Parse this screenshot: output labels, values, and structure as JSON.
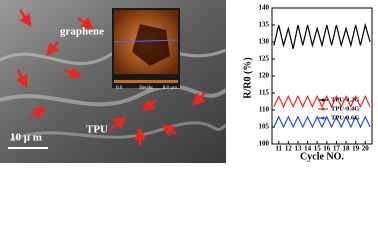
{
  "image": {
    "labels": [
      "graphene",
      "TPU",
      "10 μ m"
    ],
    "inset_labels": [
      "0.0",
      "Height",
      "8.0 μm"
    ]
  },
  "chart_data": {
    "type": "line",
    "x_label": "Cycle NO.",
    "y_label": "R/R0 (%)",
    "x": [
      10.5,
      11,
      11.5,
      12,
      12.5,
      13,
      13.5,
      14,
      14.5,
      15,
      15.5,
      16,
      16.5,
      17,
      17.5,
      18,
      18.5,
      19,
      19.5,
      20,
      20.5
    ],
    "series": [
      {
        "name": "TPU-0.2G",
        "color": "#000000",
        "values": [
          129,
          135,
          129,
          134,
          128,
          135,
          129,
          135,
          129,
          134,
          129,
          135,
          129,
          135,
          129,
          134,
          129,
          135,
          129,
          135,
          130
        ]
      },
      {
        "name": "TPU-0.4G",
        "color": "#e8281e",
        "values": [
          111,
          114,
          111,
          114,
          111,
          114,
          111,
          114,
          111,
          114,
          111,
          114,
          111,
          114,
          111,
          114,
          111,
          114,
          111,
          114,
          111
        ]
      },
      {
        "name": "TPU-0.6G",
        "color": "#2a4be0",
        "values": [
          105,
          108,
          105,
          108,
          105,
          108,
          105,
          108,
          105,
          108,
          105,
          108,
          105,
          108,
          105,
          108,
          105,
          108,
          105,
          108,
          105
        ]
      }
    ],
    "xlim": [
      10.3,
      20.7
    ],
    "xticks": [
      11,
      12,
      13,
      14,
      15,
      16,
      17,
      18,
      19,
      20
    ],
    "ylim": [
      100,
      140
    ],
    "yticks": [
      100,
      105,
      110,
      115,
      120,
      125,
      130,
      135,
      140
    ],
    "legend": "lower-right"
  }
}
